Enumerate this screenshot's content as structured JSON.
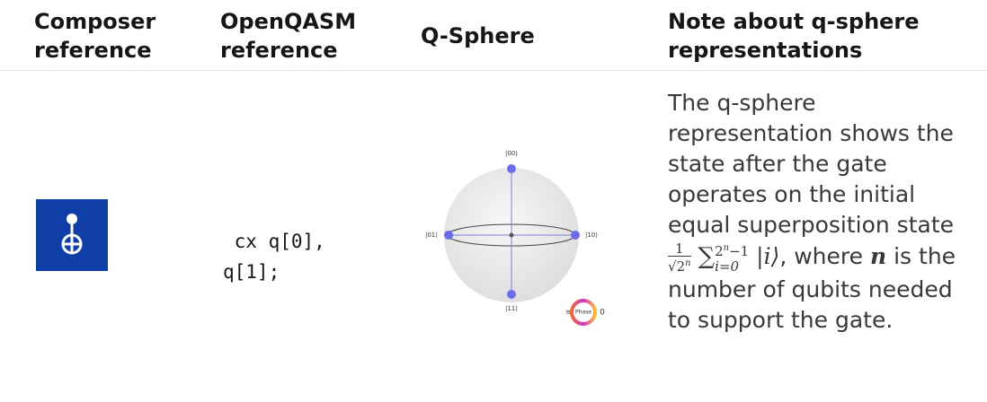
{
  "table": {
    "headers": [
      "Composer reference",
      "OpenQASM reference",
      "Q-Sphere",
      "Note about q-sphere representations"
    ],
    "rows": [
      {
        "code": " cx q[0], q[1];",
        "qsphere": {
          "labels": [
            "|00⟩",
            "|01⟩",
            "|10⟩",
            "|11⟩"
          ],
          "phase_low": "π",
          "phase": "Phase",
          "phase_high": "0"
        },
        "note": {
          "before": "The q-sphere representation shows the state after the gate operates on the initial equal superposition state",
          "math": {
            "numerator": "1",
            "radical": "√",
            "base": "2",
            "exponent": "n",
            "sum": "∑",
            "upper_base": "2",
            "upper_exp": "n",
            "upper_rest": "−1",
            "lower": "i=0",
            "ket": "|i⟩"
          },
          "middle": ", where",
          "variable": "n",
          "after": "is the number of qubits needed to support the gate."
        }
      }
    ]
  }
}
